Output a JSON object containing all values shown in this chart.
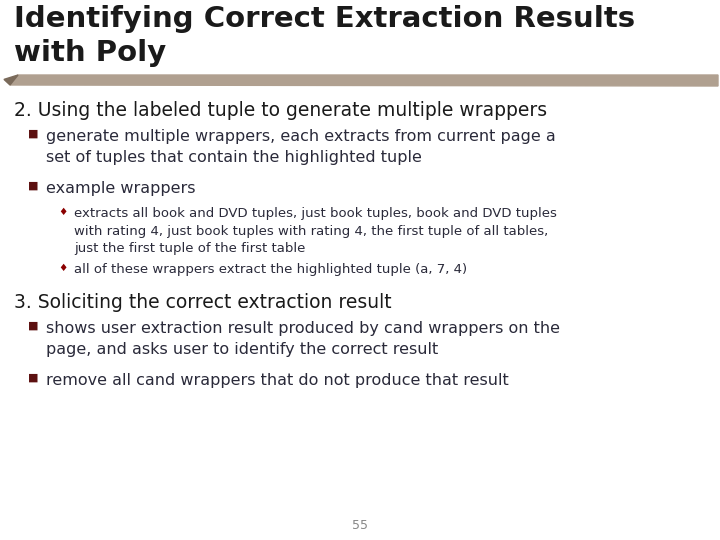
{
  "title_line1": "Identifying Correct Extraction Results",
  "title_line2": "with Poly",
  "title_color": "#1a1a1a",
  "accent_bar_color": "#b0a090",
  "accent_triangle_color": "#7a6a5a",
  "section2_heading": "2. Using the labeled tuple to generate multiple wrappers",
  "section3_heading": "3. Soliciting the correct extraction result",
  "heading_color": "#1a1a1a",
  "bullet_color": "#5c1010",
  "bullet_char": "■",
  "sub_bullet_char": "♦",
  "body_color": "#2a2a3a",
  "highlight_color": "#8b0000",
  "page_number": "55",
  "background_color": "#ffffff",
  "bullet1_s2": "generate multiple wrappers, each extracts from current page a\nset of tuples that contain the highlighted tuple",
  "bullet2_s2": "example wrappers",
  "subbullet1_s2": "extracts all book and DVD tuples, just book tuples, book and DVD tuples\nwith rating 4, just book tuples with rating 4, the first tuple of all tables,\njust the first tuple of the first table",
  "subbullet2_s2": "all of these wrappers extract the highlighted tuple (a, 7, 4)",
  "bullet1_s3": "shows user extraction result produced by cand wrappers on the\npage, and asks user to identify the correct result",
  "bullet2_s3": "remove all cand wrappers that do not produce that result",
  "title_fontsize": 21,
  "heading_fontsize": 13.5,
  "bullet_fontsize": 11.5,
  "subbullet_fontsize": 9.5
}
